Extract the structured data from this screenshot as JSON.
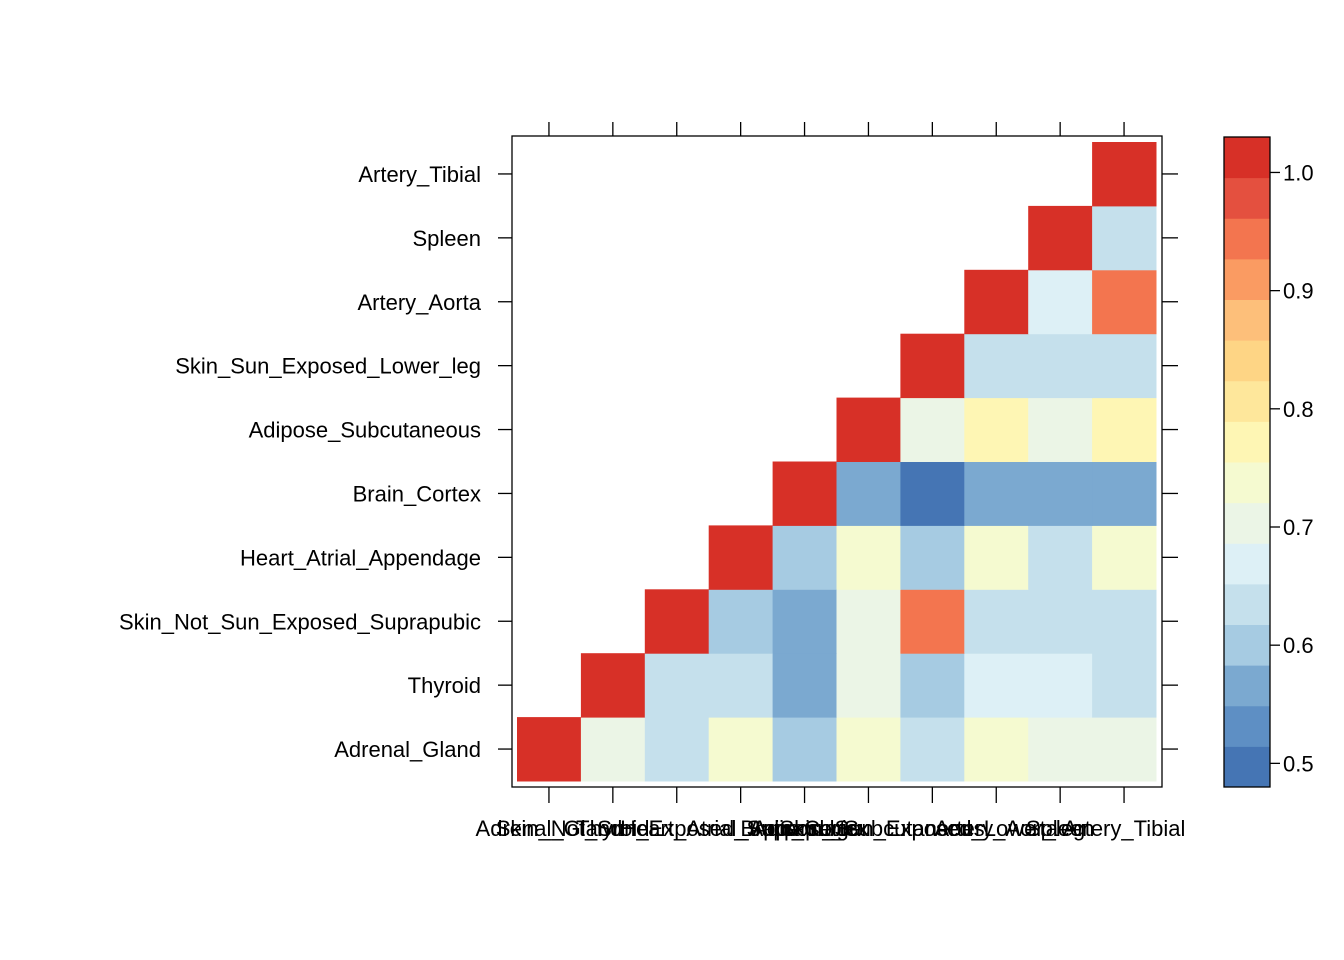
{
  "chart_data": {
    "type": "heatmap",
    "title": "",
    "xlabel": "",
    "ylabel": "",
    "categories": [
      "Adrenal_Gland",
      "Thyroid",
      "Skin_Not_Sun_Exposed_Suprapubic",
      "Heart_Atrial_Appendage",
      "Brain_Cortex",
      "Adipose_Subcutaneous",
      "Skin_Sun_Exposed_Lower_leg",
      "Artery_Aorta",
      "Spleen",
      "Artery_Tibial"
    ],
    "matrix": [
      [
        1.0,
        0.7,
        0.64,
        0.74,
        0.6,
        0.74,
        0.64,
        0.74,
        0.7,
        0.7
      ],
      [
        null,
        1.0,
        0.64,
        0.64,
        0.55,
        0.7,
        0.6,
        0.68,
        0.68,
        0.64
      ],
      [
        null,
        null,
        1.0,
        0.6,
        0.55,
        0.7,
        0.96,
        0.64,
        0.64,
        0.64
      ],
      [
        null,
        null,
        null,
        1.0,
        0.6,
        0.74,
        0.6,
        0.74,
        0.64,
        0.74
      ],
      [
        null,
        null,
        null,
        null,
        1.0,
        0.55,
        0.5,
        0.58,
        0.55,
        0.58
      ],
      [
        null,
        null,
        null,
        null,
        null,
        1.0,
        0.7,
        0.78,
        0.7,
        0.78
      ],
      [
        null,
        null,
        null,
        null,
        null,
        null,
        1.0,
        0.64,
        0.64,
        0.64
      ],
      [
        null,
        null,
        null,
        null,
        null,
        null,
        null,
        1.0,
        0.68,
        0.94
      ],
      [
        null,
        null,
        null,
        null,
        null,
        null,
        null,
        null,
        1.0,
        0.64
      ],
      [
        null,
        null,
        null,
        null,
        null,
        null,
        null,
        null,
        null,
        1.0
      ]
    ],
    "colorbar": {
      "ticks": [
        "0.5",
        "0.6",
        "0.7",
        "0.8",
        "0.9",
        "1.0"
      ],
      "tick_values": [
        0.5,
        0.6,
        0.7,
        0.8,
        0.9,
        1.0
      ],
      "range": [
        0.48,
        1.03
      ],
      "colors": [
        "#4575b4",
        "#5e8fc4",
        "#7ba9d0",
        "#a6cbe2",
        "#c5e0ec",
        "#ddf0f6",
        "#ebf5e6",
        "#f5fad0",
        "#fef6b4",
        "#fee79b",
        "#fed585",
        "#fdbf7a",
        "#fa9b62",
        "#f3754f",
        "#e4503f",
        "#d73027"
      ]
    }
  }
}
